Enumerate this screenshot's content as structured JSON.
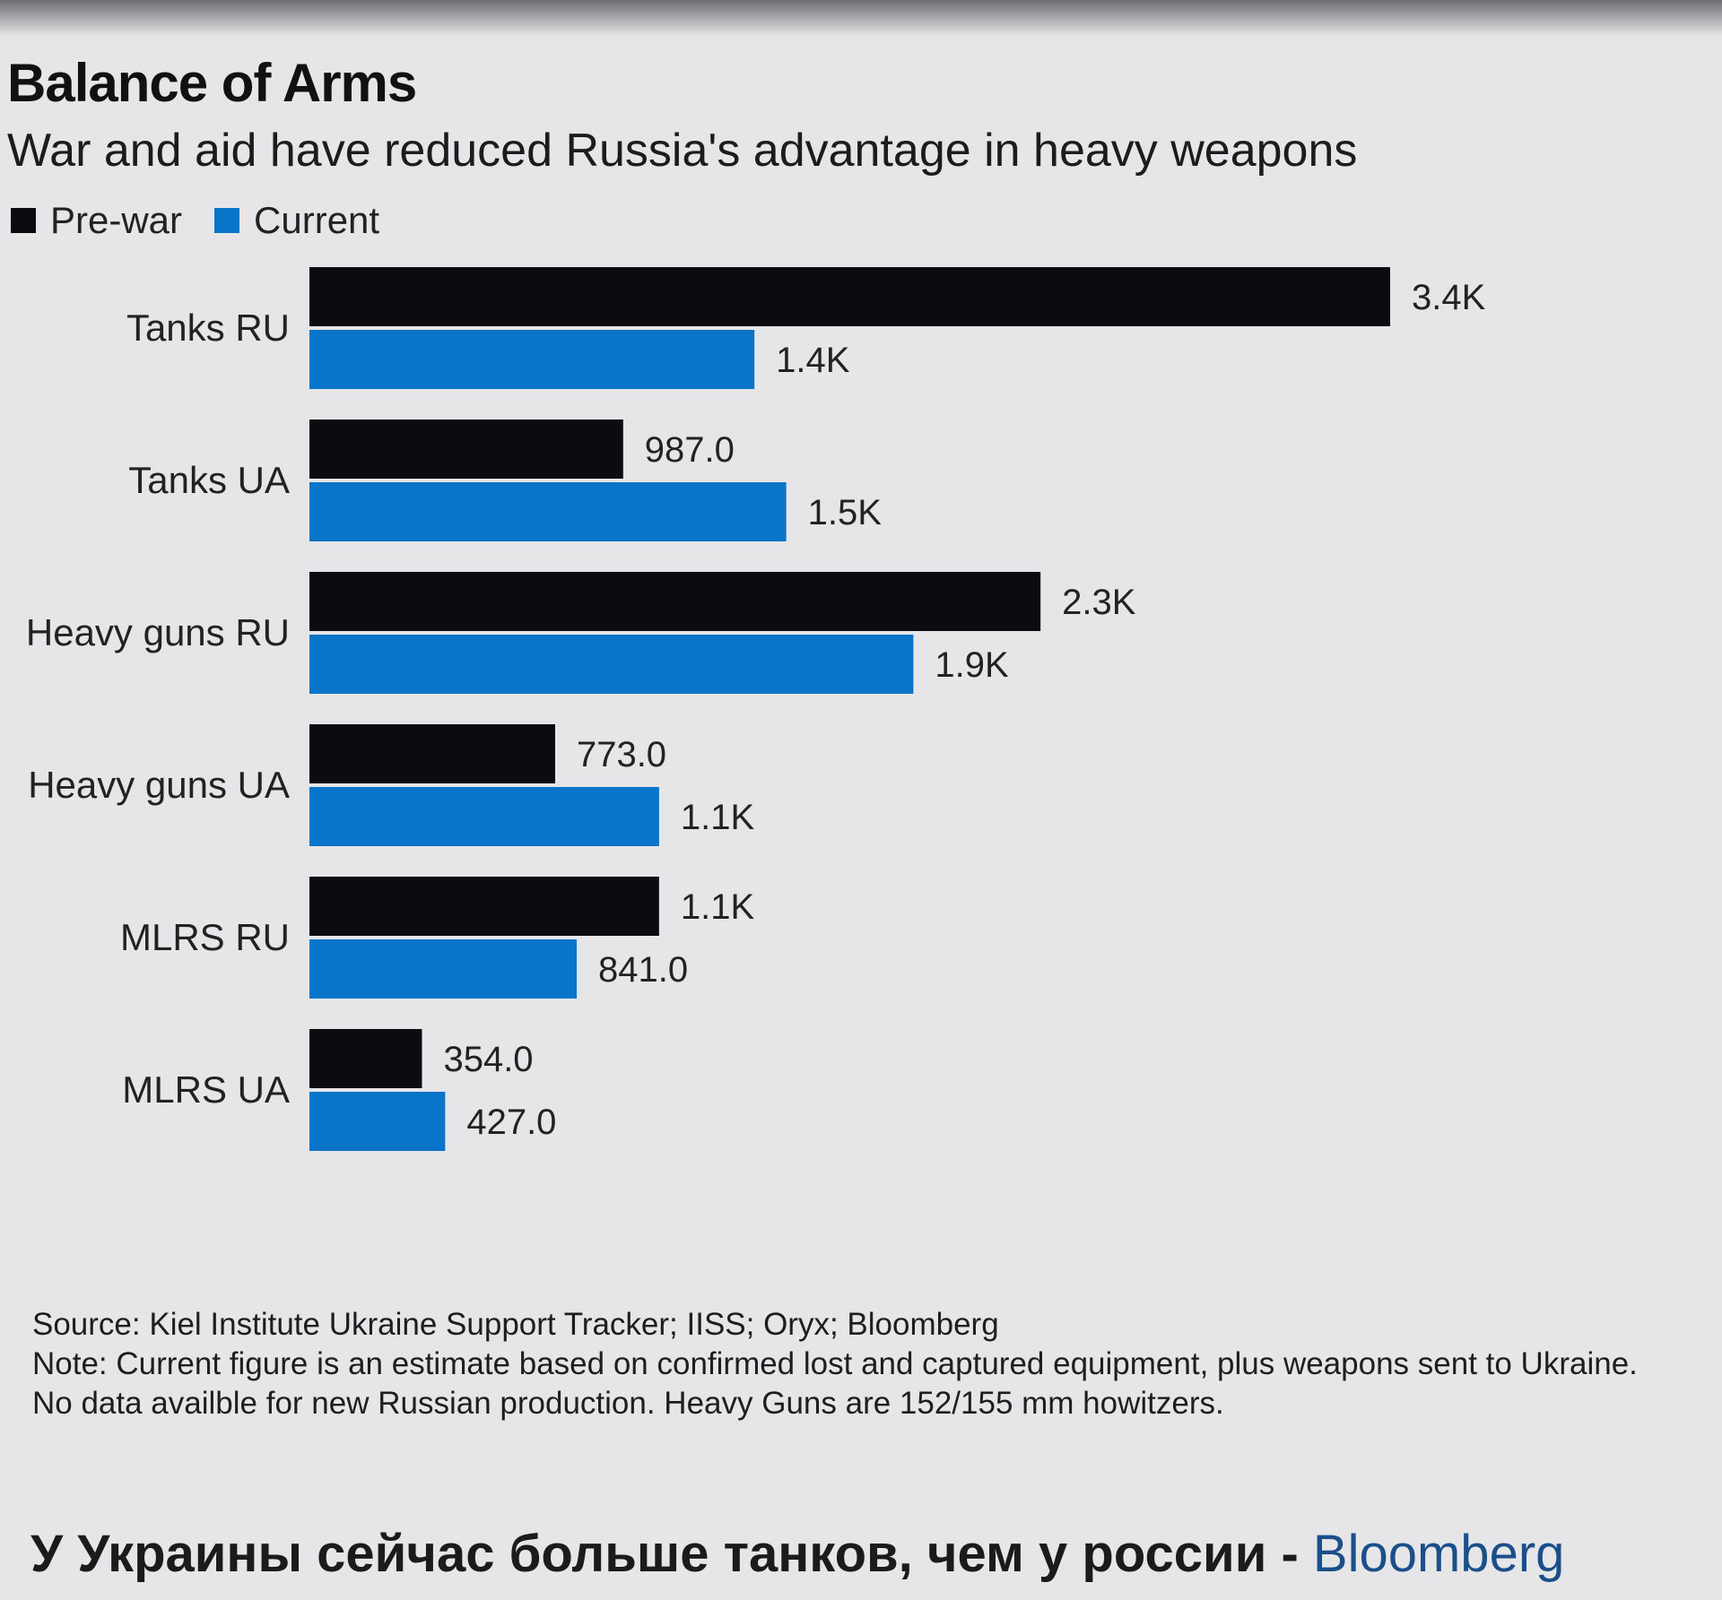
{
  "chart_data": {
    "type": "bar",
    "orientation": "horizontal",
    "title": "Balance of Arms",
    "subtitle": "War and aid have reduced Russia's advantage in heavy weapons",
    "categories": [
      "Tanks RU",
      "Tanks UA",
      "Heavy guns RU",
      "Heavy guns UA",
      "MLRS RU",
      "MLRS UA"
    ],
    "series": [
      {
        "name": "Pre-war",
        "color": "#0b0b10",
        "values": [
          3400,
          987,
          2300,
          773,
          1100,
          354
        ],
        "labels": [
          "3.4K",
          "987.0",
          "2.3K",
          "773.0",
          "1.1K",
          "354.0"
        ]
      },
      {
        "name": "Current",
        "color": "#0a74c8",
        "values": [
          1400,
          1500,
          1900,
          1100,
          841,
          427
        ],
        "labels": [
          "1.4K",
          "1.5K",
          "1.9K",
          "1.1K",
          "841.0",
          "427.0"
        ]
      }
    ],
    "xlim": [
      0,
      3400
    ],
    "legend_position": "top-left",
    "grid": false,
    "xlabel": "",
    "ylabel": ""
  },
  "footer": {
    "source": "Source: Kiel Institute Ukraine Support Tracker; IISS; Oryx; Bloomberg",
    "note": "Note: Current figure is an estimate based on confirmed lost and captured equipment, plus weapons sent to Ukraine. No data availble for new Russian production. Heavy Guns are 152/155 mm howitzers."
  },
  "caption": {
    "text": "У Украины сейчас больше танков, чем у россии - ",
    "brand": "Bloomberg"
  }
}
